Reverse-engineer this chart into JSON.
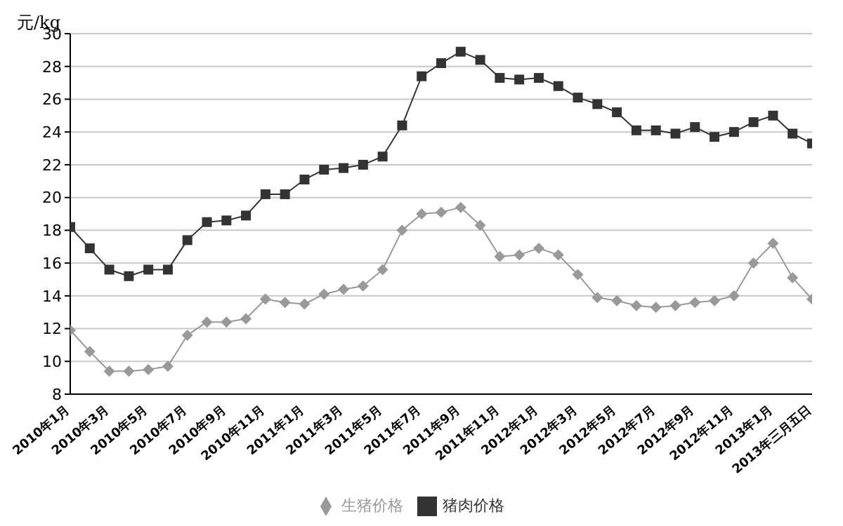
{
  "chart_data": {
    "type": "line",
    "ylabel": "元/kg",
    "categories": [
      "2010年1月",
      null,
      "2010年3月",
      null,
      "2010年5月",
      null,
      "2010年7月",
      null,
      "2010年9月",
      null,
      "2010年11月",
      null,
      "2011年1月",
      null,
      "2011年3月",
      null,
      "2011年5月",
      null,
      "2011年7月",
      null,
      "2011年9月",
      null,
      "2011年11月",
      null,
      "2012年1月",
      null,
      "2012年3月",
      null,
      "2012年5月",
      null,
      "2012年7月",
      null,
      "2012年9月",
      null,
      "2012年11月",
      null,
      "2013年1月",
      null,
      "2013年三月五日"
    ],
    "series": [
      {
        "name": "生猪价格",
        "color": "#999999",
        "marker": "diamond",
        "values": [
          11.9,
          10.6,
          9.4,
          9.4,
          9.5,
          9.7,
          11.6,
          12.4,
          12.4,
          12.6,
          13.8,
          13.6,
          13.5,
          14.1,
          14.4,
          14.6,
          15.6,
          18.0,
          19.0,
          19.1,
          19.4,
          18.3,
          16.4,
          16.5,
          16.9,
          16.5,
          15.3,
          13.9,
          13.7,
          13.4,
          13.3,
          13.4,
          13.6,
          13.7,
          14.0,
          16.0,
          17.2,
          15.1,
          13.8
        ]
      },
      {
        "name": "猪肉价格",
        "color": "#333333",
        "marker": "square",
        "values": [
          18.2,
          16.9,
          15.6,
          15.2,
          15.6,
          15.6,
          17.4,
          18.5,
          18.6,
          18.9,
          20.2,
          20.2,
          21.1,
          21.7,
          21.8,
          22.0,
          22.5,
          24.4,
          27.4,
          28.2,
          28.9,
          28.4,
          27.3,
          27.2,
          27.3,
          26.8,
          26.1,
          25.7,
          25.2,
          24.1,
          24.1,
          23.9,
          24.3,
          23.7,
          24.0,
          24.6,
          25.0,
          23.9,
          23.3
        ]
      }
    ],
    "ylim": [
      8,
      30
    ],
    "yticks": [
      8,
      10,
      12,
      14,
      16,
      18,
      20,
      22,
      24,
      26,
      28,
      30
    ],
    "grid": "y",
    "legend": "bottom",
    "line_style": "solid"
  }
}
